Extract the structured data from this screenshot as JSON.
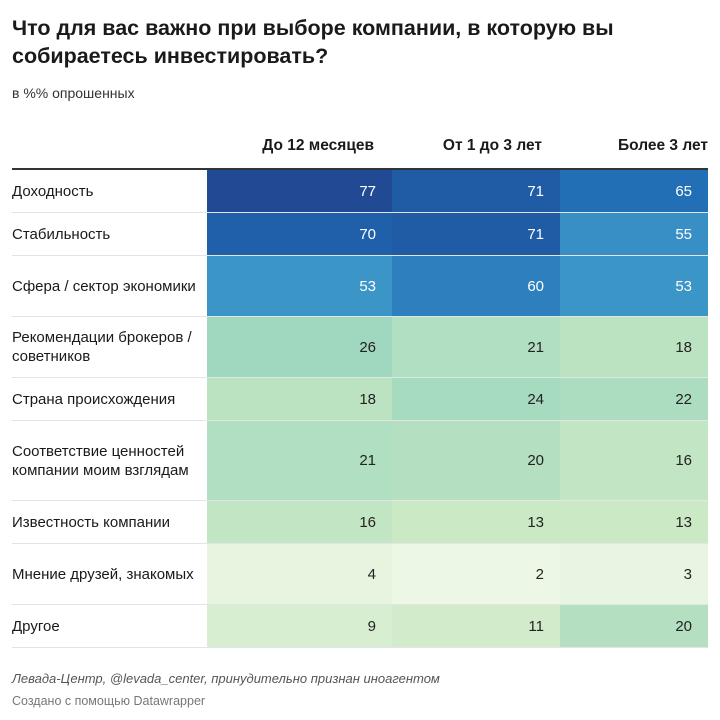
{
  "title": "Что для вас важно при выборе компании, в которую вы собираетесь инвестировать?",
  "subtitle": "в %% опрошенных",
  "chart_data": {
    "type": "table",
    "columns": [
      "До 12 месяцев",
      "От 1 до 3 лет",
      "Более 3 лет"
    ],
    "rows": [
      {
        "label": "Доходность",
        "values": [
          77,
          71,
          65
        ]
      },
      {
        "label": "Стабильность",
        "values": [
          70,
          71,
          55
        ]
      },
      {
        "label": "Сфера / сектор экономики",
        "values": [
          53,
          60,
          53
        ]
      },
      {
        "label": "Рекомендации брокеров / советников",
        "values": [
          26,
          21,
          18
        ]
      },
      {
        "label": "Страна происхождения",
        "values": [
          18,
          24,
          22
        ]
      },
      {
        "label": "Соответствие ценностей компании моим взглядам",
        "values": [
          21,
          20,
          16
        ]
      },
      {
        "label": "Известность компании",
        "values": [
          16,
          13,
          13
        ]
      },
      {
        "label": "Мнение друзей, знакомых",
        "values": [
          4,
          2,
          3
        ]
      },
      {
        "label": "Другое",
        "values": [
          9,
          11,
          20
        ]
      }
    ],
    "color_scale": [
      "#f2f9ec",
      "#cbe9c4",
      "#9dd7be",
      "#6bbdc5",
      "#3a94c7",
      "#1f6ab4",
      "#233f8a"
    ]
  },
  "footer": {
    "source": "Левада-Центр, @levada_center, принудительно признан иноагентом",
    "credit": "Создано с помощью Datawrapper"
  }
}
